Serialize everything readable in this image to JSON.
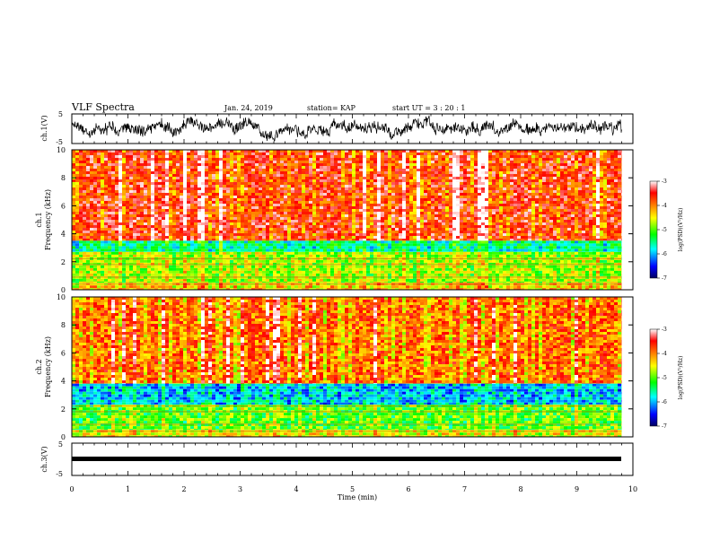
{
  "header": {
    "title": "VLF Spectra",
    "date": "Jan. 24, 2019",
    "station": "station= KAP",
    "start": "start  UT =   3  : 20 : 1"
  },
  "chart_data": [
    {
      "type": "line",
      "name": "ch1-waveform",
      "ylabel": "ch.1(V)",
      "ylim": [
        -5,
        5
      ],
      "yticks": [
        "5",
        "-5"
      ],
      "description_series": "noisy waveform, amplitude mostly within ±3 V"
    },
    {
      "type": "heatmap",
      "name": "ch1-spectrogram",
      "ylabel": "ch.1",
      "ylabel2": "Frequency  (kHz)",
      "ylim": [
        0,
        10
      ],
      "yticks": [
        "0",
        "2",
        "4",
        "6",
        "8",
        "10"
      ],
      "colorbar": {
        "label": "log(PSD)(V²/Hz)",
        "range": [
          -7,
          -3
        ],
        "ticks": [
          "-3",
          "-4",
          "-5",
          "-6",
          "-7"
        ],
        "colors": [
          "#000080",
          "#0000ff",
          "#00ffff",
          "#00ff00",
          "#ffff00",
          "#ff8000",
          "#ff0000",
          "#ffffff"
        ]
      },
      "bands": [
        {
          "from_khz": 3.5,
          "to_khz": 10,
          "level": -3.6
        },
        {
          "from_khz": 2.7,
          "to_khz": 3.5,
          "level": -5.5
        },
        {
          "from_khz": 0.5,
          "to_khz": 2.7,
          "level": -4.7
        },
        {
          "from_khz": 0.0,
          "to_khz": 0.5,
          "level": -4.3
        }
      ]
    },
    {
      "type": "heatmap",
      "name": "ch2-spectrogram",
      "ylabel": "ch.2",
      "ylabel2": "Frequency  (kHz)",
      "ylim": [
        0,
        10
      ],
      "yticks": [
        "0",
        "2",
        "4",
        "6",
        "8",
        "10"
      ],
      "colorbar": {
        "label": "log(PSD)(V²/Hz)",
        "range": [
          -7,
          -3
        ],
        "ticks": [
          "-3",
          "-4",
          "-5",
          "-6",
          "-7"
        ]
      },
      "bands": [
        {
          "from_khz": 3.8,
          "to_khz": 10,
          "level": -3.9
        },
        {
          "from_khz": 2.3,
          "to_khz": 3.8,
          "level": -5.9
        },
        {
          "from_khz": 0.5,
          "to_khz": 2.3,
          "level": -5.0
        },
        {
          "from_khz": 0.0,
          "to_khz": 0.5,
          "level": -4.5
        }
      ]
    },
    {
      "type": "line",
      "name": "ch3-waveform",
      "ylabel": "ch.3(V)",
      "ylim": [
        -5,
        5
      ],
      "yticks": [
        "5",
        "-5"
      ],
      "constant_value": 0
    }
  ],
  "xaxis": {
    "label": "Time  (min)",
    "range": [
      0,
      10
    ],
    "ticks": [
      "0",
      "1",
      "2",
      "3",
      "4",
      "5",
      "6",
      "7",
      "8",
      "9",
      "10"
    ],
    "data_end": 9.8
  }
}
